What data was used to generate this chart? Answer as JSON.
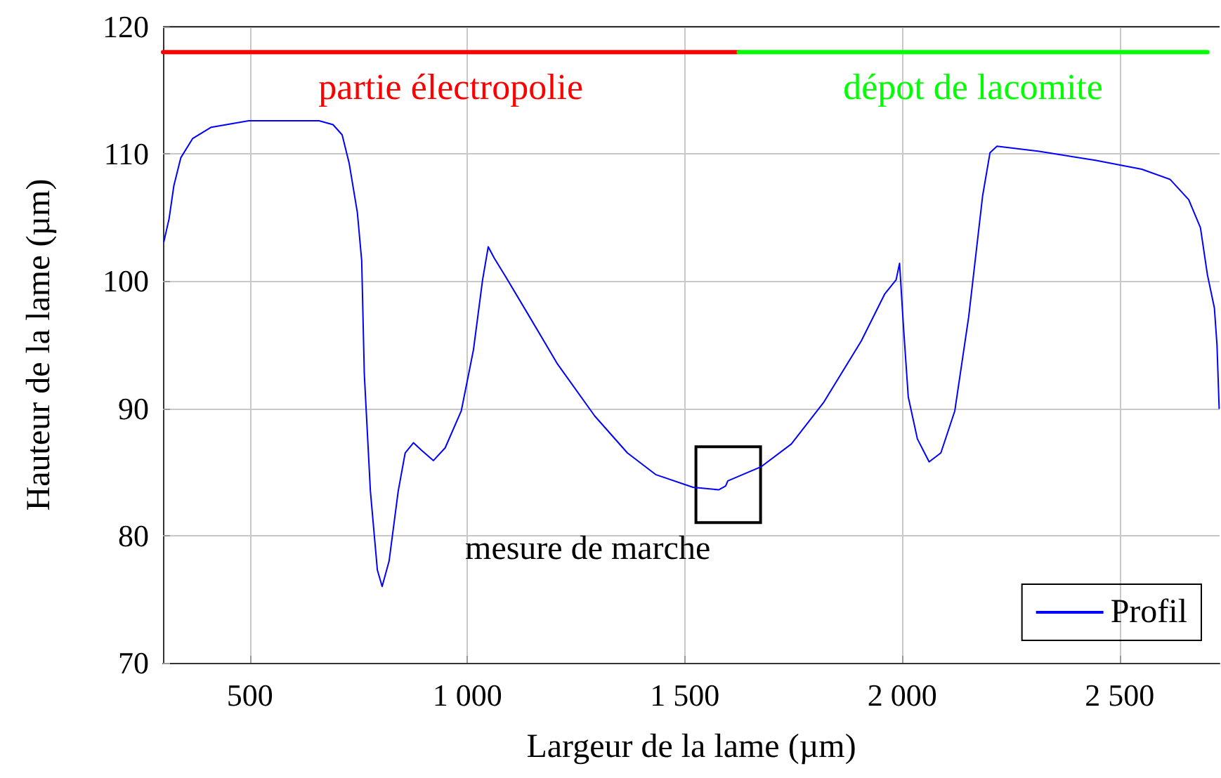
{
  "chart_data": {
    "type": "line",
    "xlabel": "Largeur de la lame (µm)",
    "ylabel": "Hauteur de la lame (µm)",
    "x": [
      302,
      314,
      325,
      341,
      368,
      411,
      497,
      659,
      691,
      712,
      728,
      747,
      757,
      763,
      777,
      793,
      804,
      820,
      841,
      857,
      876,
      895,
      922,
      949,
      986,
      1014,
      1035,
      1048,
      1062,
      1089,
      1143,
      1207,
      1293,
      1368,
      1433,
      1519,
      1578,
      1594,
      1599,
      1675,
      1745,
      1820,
      1906,
      1960,
      1986,
      1994,
      2003,
      2014,
      2035,
      2062,
      2089,
      2121,
      2153,
      2185,
      2202,
      2218,
      2315,
      2444,
      2551,
      2616,
      2659,
      2686,
      2702,
      2718,
      2724,
      2729
    ],
    "series": [
      {
        "name": "Profil",
        "color": "#0000ff",
        "values": [
          103.1,
          104.9,
          107.5,
          109.7,
          111.2,
          112.1,
          112.6,
          112.6,
          112.3,
          111.5,
          109.3,
          105.4,
          101.6,
          92.7,
          83.5,
          77.3,
          76.0,
          78.0,
          83.5,
          86.5,
          87.3,
          86.7,
          85.9,
          86.9,
          89.8,
          94.6,
          100.1,
          102.7,
          101.8,
          100.3,
          97.2,
          93.5,
          89.4,
          86.5,
          84.8,
          83.8,
          83.6,
          83.9,
          84.3,
          85.4,
          87.2,
          90.5,
          95.3,
          99.0,
          100.1,
          101.4,
          96.4,
          90.9,
          87.6,
          85.8,
          86.5,
          89.8,
          97.2,
          106.7,
          110.1,
          110.6,
          110.2,
          109.5,
          108.8,
          108.0,
          106.4,
          104.2,
          100.5,
          97.9,
          95.0,
          90.0
        ]
      },
      {
        "name": "partie électropolie",
        "color": "#ff0000",
        "x": [
          300,
          1624
        ],
        "values": [
          118,
          118
        ]
      },
      {
        "name": "dépot de lacomite",
        "color": "#00ff00",
        "x": [
          1624,
          2702
        ],
        "values": [
          118,
          118
        ]
      }
    ],
    "annotations": [
      {
        "text": "mesure de marche",
        "x": 1600,
        "y": 84
      }
    ],
    "xlim": [
      300,
      2730
    ],
    "xticks": [
      500,
      {
        "value": 1000,
        "label": "1 000"
      },
      {
        "value": 1500,
        "label": "1 500"
      },
      {
        "value": 2000,
        "label": "2 000"
      },
      {
        "value": 2500,
        "label": "2 500"
      }
    ],
    "ylim": [
      70,
      120
    ],
    "yticks": [
      70,
      80,
      90,
      100,
      110,
      120
    ],
    "grid": true,
    "legend": "bottom right",
    "marker": "none",
    "line_style": "solid"
  }
}
